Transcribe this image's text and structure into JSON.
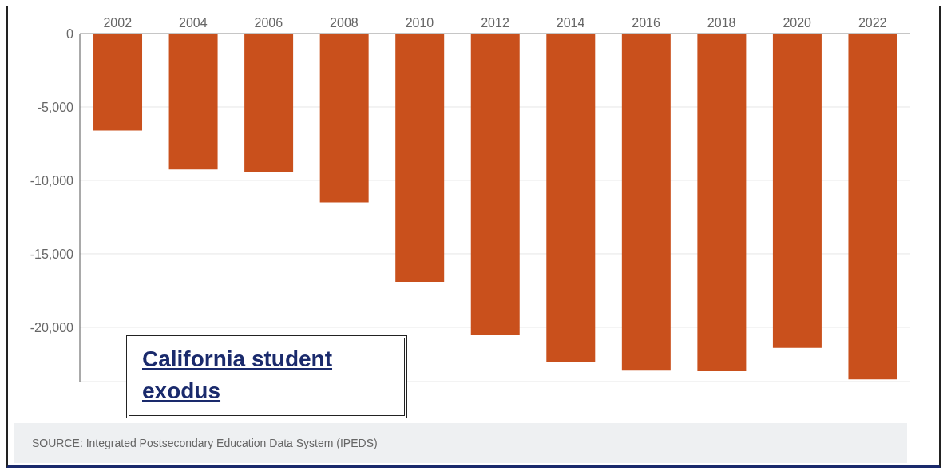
{
  "chart_data": {
    "type": "bar",
    "title": "California student exodus",
    "categories": [
      "2002",
      "2004",
      "2006",
      "2008",
      "2010",
      "2012",
      "2014",
      "2016",
      "2018",
      "2020",
      "2022"
    ],
    "values": [
      -6600,
      -9250,
      -9450,
      -11500,
      -16900,
      -20550,
      -22400,
      -22950,
      -23000,
      -21400,
      -23550
    ],
    "color": "#c9501c",
    "ylim": [
      -23700,
      0
    ],
    "yticks": [
      0,
      {
        "value": -5000,
        "label": "-5,000"
      },
      {
        "value": -10000,
        "label": "-10,000"
      },
      {
        "value": -15000,
        "label": "-15,000"
      },
      {
        "value": -20000,
        "label": "-20,000"
      }
    ],
    "grid": "y",
    "annotations": [
      "SOURCE: Integrated Postsecondary Education Data System (IPEDS)"
    ]
  }
}
